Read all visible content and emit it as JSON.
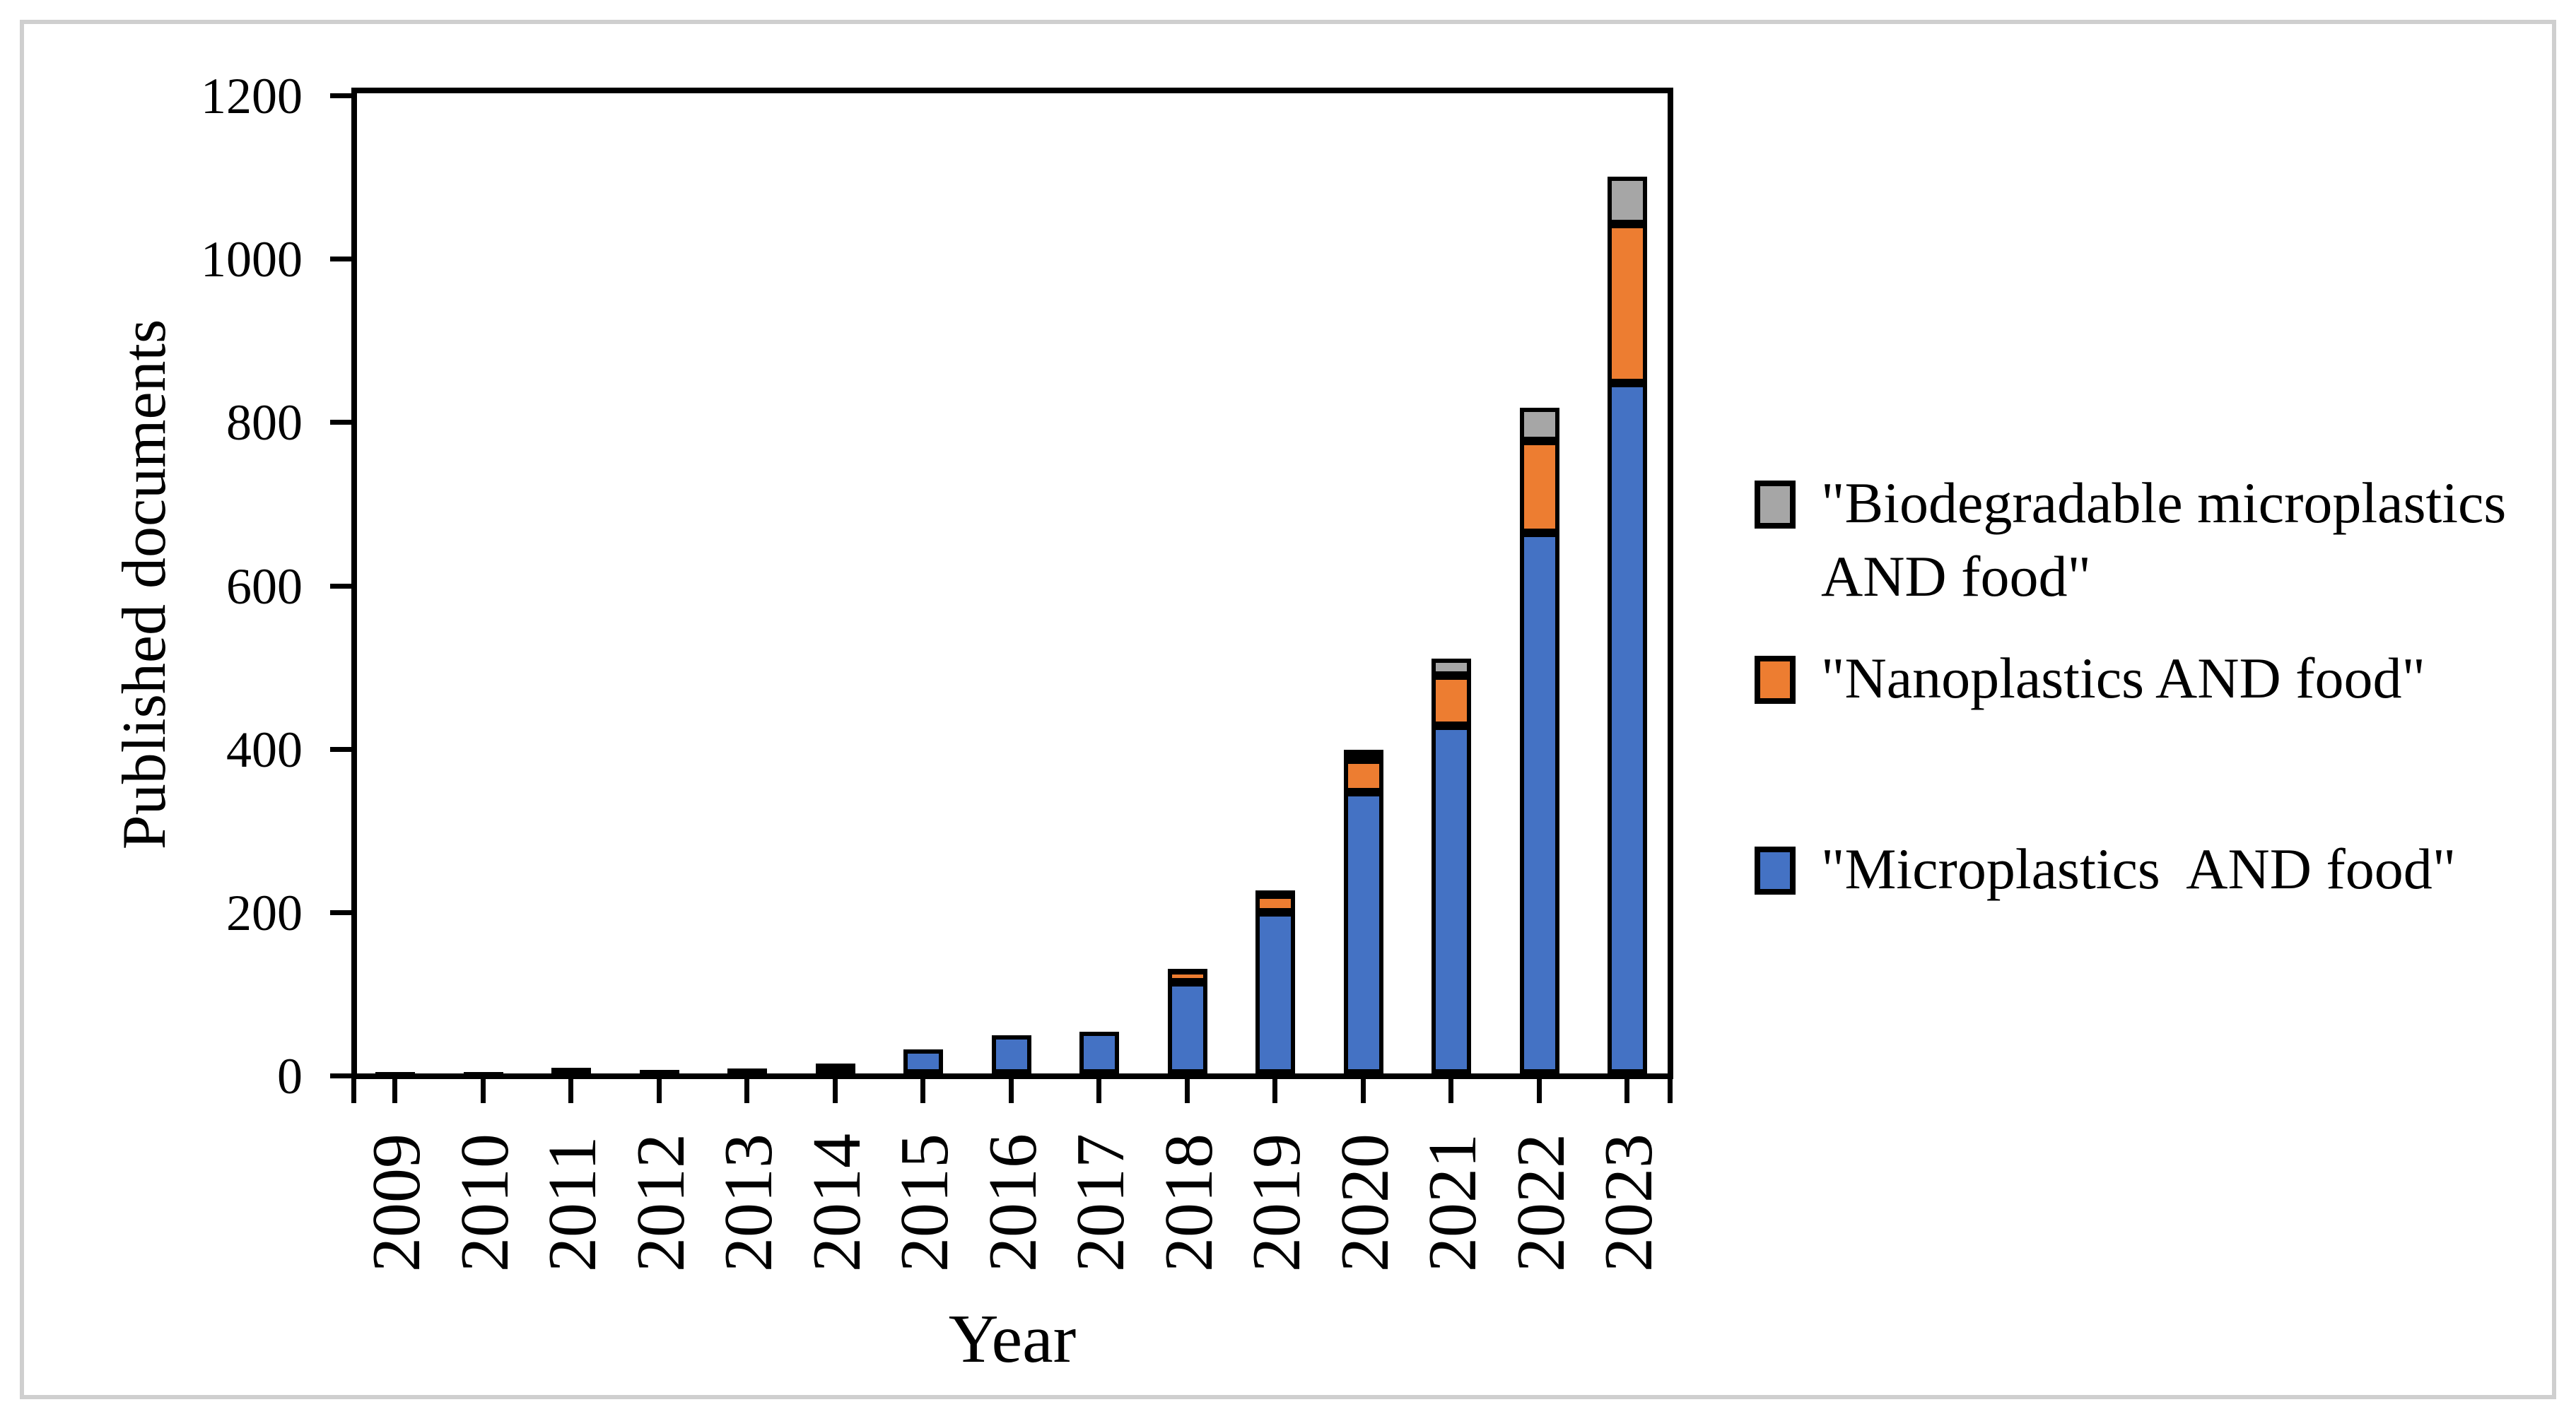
{
  "figure": {
    "background": "#ffffff",
    "frame_color": "#cfcfcf",
    "axis_color": "#000000"
  },
  "chart_data": {
    "type": "bar",
    "stacked": true,
    "title": "",
    "xlabel": "Year",
    "ylabel": "Published documents",
    "ylim": [
      0,
      1200
    ],
    "ytick_step": 200,
    "yticks": [
      "0",
      "200",
      "400",
      "600",
      "800",
      "1000",
      "1200"
    ],
    "grid": false,
    "legend_position": "right",
    "categories": [
      "2009",
      "2010",
      "2011",
      "2012",
      "2013",
      "2014",
      "2015",
      "2016",
      "2017",
      "2018",
      "2019",
      "2020",
      "2021",
      "2022",
      "2023"
    ],
    "series": [
      {
        "key": "microplastics-and-food",
        "name": "\"Microplastics  AND food\"",
        "color": "#4472C4",
        "outline": "#000000",
        "values": [
          2,
          2,
          7,
          4,
          6,
          12,
          29,
          47,
          51,
          112,
          197,
          344,
          426,
          662,
          845
        ]
      },
      {
        "key": "nanoplastics-and-food",
        "name": "\"Nanoplastics AND food\"",
        "color": "#ED7D31",
        "outline": "#000000",
        "values": [
          0,
          0,
          0,
          0,
          0,
          0,
          0,
          0,
          0,
          14,
          22,
          40,
          61,
          112,
          195
        ]
      },
      {
        "key": "biodegradable-microplastics-and-food",
        "name": "\"Biodegradable microplastics AND food\"",
        "color": "#A6A6A6",
        "outline": "#000000",
        "values": [
          0,
          0,
          0,
          0,
          0,
          0,
          0,
          0,
          0,
          2,
          5,
          12,
          21,
          41,
          58
        ]
      }
    ],
    "totals": [
      2,
      2,
      7,
      4,
      6,
      12,
      29,
      47,
      51,
      128,
      224,
      396,
      508,
      815,
      1098
    ]
  },
  "legend": {
    "items": [
      {
        "label": "\"Biodegradable microplastics AND food\"",
        "color": "#A6A6A6"
      },
      {
        "label": "\"Nanoplastics AND food\"",
        "color": "#ED7D31"
      },
      {
        "label": "\"Microplastics  AND food\"",
        "color": "#4472C4"
      }
    ]
  }
}
